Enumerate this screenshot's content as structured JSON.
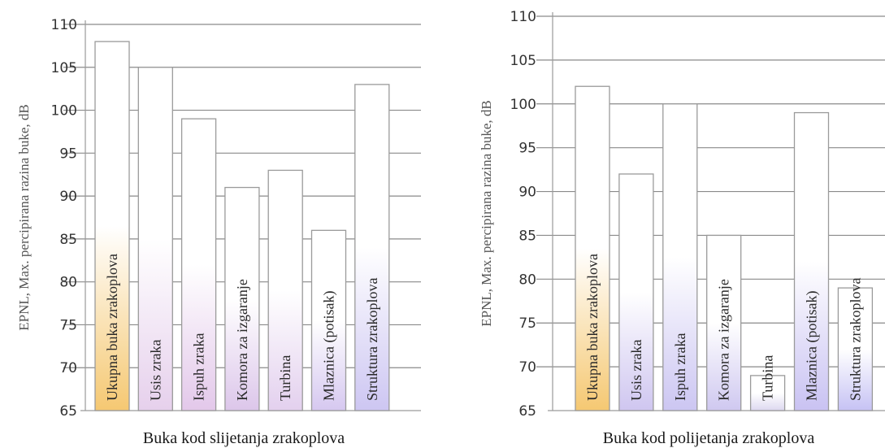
{
  "chart_data": [
    {
      "type": "bar",
      "categories": [
        "Ukupna buka zrakoplova",
        "Usis zraka",
        "Ispuh zraka",
        "Komora za izgaranje",
        "Turbina",
        "Mlaznica (potisak)",
        "Struktura zrakoplova"
      ],
      "values": [
        108,
        105,
        99,
        91,
        93,
        86,
        103
      ],
      "title": "",
      "xlabel": "Buka kod slijetanja zrakoplova",
      "ylabel": "EPNL, Max. percipirana razina buke, dB",
      "ylim": [
        65,
        110
      ],
      "yticks": [
        "65",
        "70",
        "75",
        "80",
        "85",
        "90",
        "95",
        "100",
        "105",
        "110"
      ],
      "grid": true,
      "legend": "none",
      "bar_colors": [
        "#f5c872",
        "#e6d0ec",
        "#e3c8ea",
        "#dcc6ea",
        "#e3d0ee",
        "#d6c8f0",
        "#cdc6f2"
      ]
    },
    {
      "type": "bar",
      "categories": [
        "Ukupna buka zrakoplova",
        "Usis zraka",
        "Ispuh zraka",
        "Komora za izgaranje",
        "Turbina",
        "Mlaznica (potisak)",
        "Struktura zrakoplova"
      ],
      "values": [
        102,
        92,
        100,
        85,
        69,
        99,
        79
      ],
      "title": "",
      "xlabel": "Buka kod polijetanja zrakoplova",
      "ylabel": "EPNL, Max. percipirana razina buke, dB",
      "ylim": [
        65,
        110
      ],
      "yticks": [
        "65",
        "70",
        "75",
        "80",
        "85",
        "90",
        "95",
        "100",
        "105",
        "110"
      ],
      "grid": true,
      "legend": "none",
      "bar_colors": [
        "#f5c872",
        "#cfc6f0",
        "#ccc6f2",
        "#cfc8f0",
        "#ddd8f0",
        "#c9c2f2",
        "#c6c2f4"
      ]
    }
  ]
}
